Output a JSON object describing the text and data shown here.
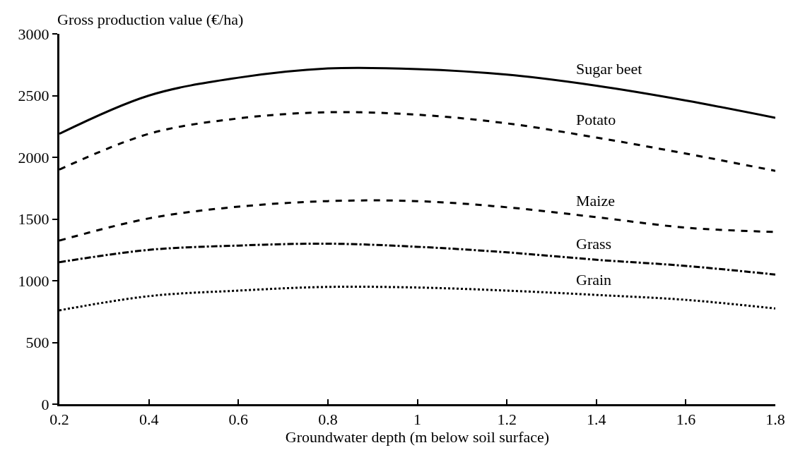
{
  "chart_data": {
    "type": "line",
    "ylabel": "Gross production value (€/ha)",
    "xlabel": "Groundwater depth (m below soil surface)",
    "x": [
      0.2,
      0.4,
      0.6,
      0.8,
      1.0,
      1.2,
      1.4,
      1.6,
      1.8
    ],
    "series": [
      {
        "name": "Sugar beet",
        "color": "#000000",
        "line_style": "solid",
        "values": [
          2190,
          2500,
          2645,
          2720,
          2715,
          2670,
          2580,
          2460,
          2320
        ]
      },
      {
        "name": "Potato",
        "color": "#000000",
        "line_style": "dashed",
        "values": [
          1900,
          2190,
          2315,
          2365,
          2345,
          2275,
          2160,
          2030,
          1890
        ]
      },
      {
        "name": "Maize",
        "color": "#000000",
        "line_style": "dashed",
        "values": [
          1325,
          1505,
          1600,
          1645,
          1645,
          1595,
          1515,
          1430,
          1395
        ]
      },
      {
        "name": "Grass",
        "color": "#000000",
        "line_style": "dashdot",
        "values": [
          1150,
          1250,
          1285,
          1300,
          1275,
          1230,
          1170,
          1120,
          1050
        ]
      },
      {
        "name": "Grain",
        "color": "#000000",
        "line_style": "dotted",
        "values": [
          760,
          875,
          920,
          950,
          945,
          920,
          885,
          845,
          775
        ]
      }
    ],
    "xlim": [
      0.2,
      1.8
    ],
    "xticks": [
      0.2,
      0.4,
      0.6,
      0.8,
      1,
      1.2,
      1.4,
      1.6,
      1.8
    ],
    "ylim": [
      0,
      3000
    ],
    "yticks": [
      0,
      500,
      1000,
      1500,
      2000,
      2500,
      3000
    ],
    "grid": false,
    "legend": false,
    "marker": "none"
  }
}
